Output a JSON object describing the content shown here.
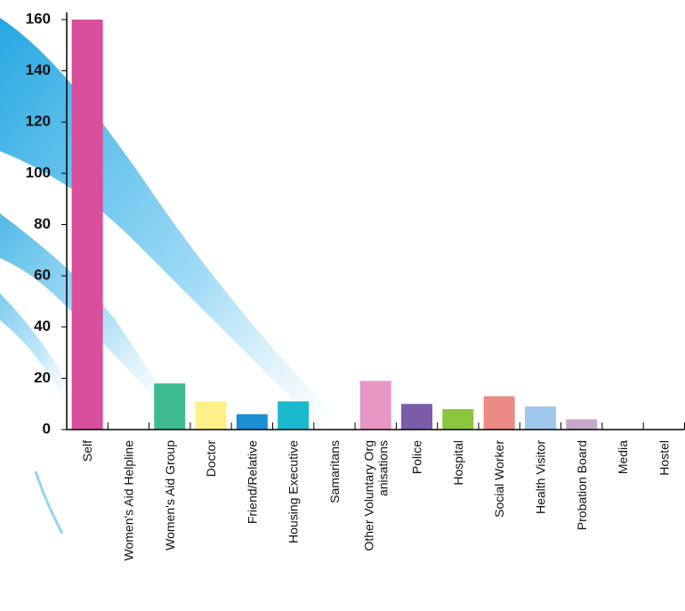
{
  "chart_data": {
    "type": "bar",
    "categories": [
      "Self",
      "Women's Aid Helpline",
      "Women's Aid Group",
      "Doctor",
      "Friend/Relative",
      "Housing Executive",
      "Samaritans",
      "Other Voluntary Org\nanisations",
      "Police",
      "Hospital",
      "Social Worker",
      "Health Visitor",
      "Probation Board",
      "Media",
      "Hostel"
    ],
    "values": [
      160,
      0,
      18,
      11,
      6,
      11,
      0,
      19,
      10,
      8,
      13,
      9,
      4,
      0,
      0
    ],
    "colors": [
      "#d94f9c",
      null,
      "#3dbb8f",
      "#fff08a",
      "#1a8fd6",
      "#1ab8cc",
      null,
      "#e896c4",
      "#7b5ca8",
      "#8cc63f",
      "#ec8b85",
      "#a0c8ec",
      "#c8a6cc",
      null,
      null
    ],
    "ylim": [
      0,
      160
    ],
    "yticks": [
      0,
      20,
      40,
      60,
      80,
      100,
      120,
      140,
      160
    ],
    "grid": false
  }
}
